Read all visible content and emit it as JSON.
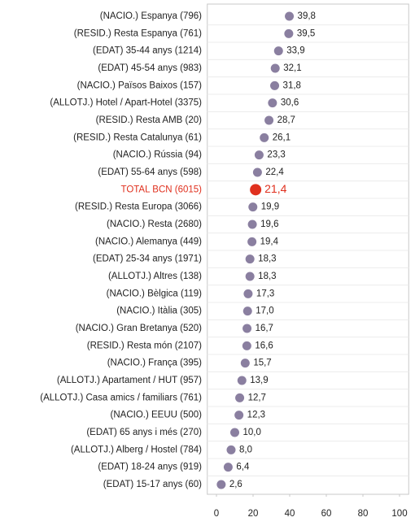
{
  "chart_data": {
    "type": "dot",
    "categories": [
      "(NACIO.) Espanya (796)",
      "(RESID.) Resta Espanya (761)",
      "(EDAT) 35-44 anys (1214)",
      "(EDAT) 45-54 anys (983)",
      "(NACIO.) Països Baixos (157)",
      "(ALLOTJ.) Hotel / Apart-Hotel (3375)",
      "(RESID.) Resta AMB (20)",
      "(RESID.) Resta Catalunya (61)",
      "(NACIO.) Rússia (94)",
      "(EDAT) 55-64 anys (598)",
      "TOTAL BCN (6015)",
      "(RESID.) Resta Europa (3066)",
      "(NACIO.) Resta (2680)",
      "(NACIO.) Alemanya (449)",
      "(EDAT) 25-34 anys (1971)",
      "(ALLOTJ.) Altres (138)",
      "(NACIO.) Bèlgica (119)",
      "(NACIO.) Itàlia (305)",
      "(NACIO.) Gran Bretanya (520)",
      "(RESID.) Resta món (2107)",
      "(NACIO.) França (395)",
      "(ALLOTJ.) Apartament / HUT (957)",
      "(ALLOTJ.) Casa amics / familiars (761)",
      "(NACIO.) EEUU (500)",
      "(EDAT) 65 anys i més (270)",
      "(ALLOTJ.) Alberg / Hostel (784)",
      "(EDAT) 18-24 anys (919)",
      "(EDAT) 15-17 anys (60)"
    ],
    "values": [
      39.8,
      39.5,
      33.9,
      32.1,
      31.8,
      30.6,
      28.7,
      26.1,
      23.3,
      22.4,
      21.4,
      19.9,
      19.6,
      19.4,
      18.3,
      18.3,
      17.3,
      17.0,
      16.7,
      16.6,
      15.7,
      13.9,
      12.7,
      12.3,
      10.0,
      8.0,
      6.4,
      2.6
    ],
    "value_labels": [
      "39,8",
      "39,5",
      "33,9",
      "32,1",
      "31,8",
      "30,6",
      "28,7",
      "26,1",
      "23,3",
      "22,4",
      "21,4",
      "19,9",
      "19,6",
      "19,4",
      "18,3",
      "18,3",
      "17,3",
      "17,0",
      "16,7",
      "16,6",
      "15,7",
      "13,9",
      "12,7",
      "12,3",
      "10,0",
      "8,0",
      "6,4",
      "2,6"
    ],
    "color": "#8a7fa0",
    "colors": [
      "#8a7fa0",
      "#8a7fa0",
      "#8a7fa0",
      "#8a7fa0",
      "#8a7fa0",
      "#8a7fa0",
      "#8a7fa0",
      "#8a7fa0",
      "#8a7fa0",
      "#8a7fa0",
      "#e0301e",
      "#8a7fa0",
      "#8a7fa0",
      "#8a7fa0",
      "#8a7fa0",
      "#8a7fa0",
      "#8a7fa0",
      "#8a7fa0",
      "#8a7fa0",
      "#8a7fa0",
      "#8a7fa0",
      "#8a7fa0",
      "#8a7fa0",
      "#8a7fa0",
      "#8a7fa0",
      "#8a7fa0",
      "#8a7fa0",
      "#8a7fa0"
    ],
    "xlim": [
      -5,
      105
    ],
    "xticks": [
      0,
      20,
      40,
      60,
      80,
      100
    ]
  }
}
